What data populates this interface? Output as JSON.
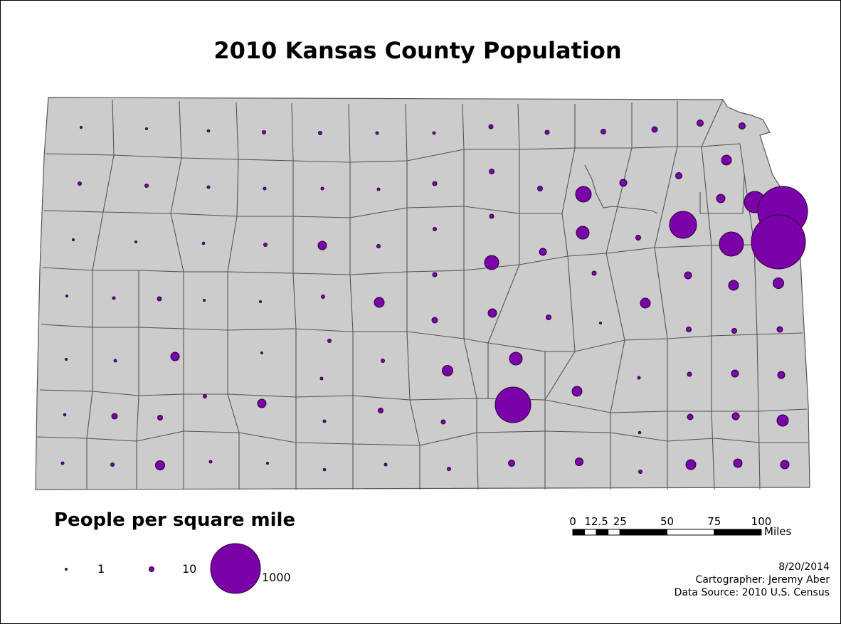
{
  "title": "2010 Kansas County Population",
  "legend": {
    "title": "People per square mile",
    "entries": [
      {
        "label": "1",
        "value": 1
      },
      {
        "label": "10",
        "value": 10
      },
      {
        "label": "1000",
        "value": 1000
      }
    ]
  },
  "scale_bar": {
    "ticks": [
      "0",
      "12.5",
      "25",
      "50",
      "75",
      "100"
    ],
    "tick_values": [
      0,
      12.5,
      25,
      50,
      75,
      100
    ],
    "unit": "Miles"
  },
  "credits": {
    "date": "8/20/2014",
    "cartographer": "Cartographer: Jeremy Aber",
    "source": "Data Source: 2010 U.S. Census"
  },
  "colors": {
    "county_fill": "#cccccc",
    "county_stroke": "#555555",
    "symbol_fill": "#7a00a8",
    "symbol_stroke": "#2a0038"
  }
}
